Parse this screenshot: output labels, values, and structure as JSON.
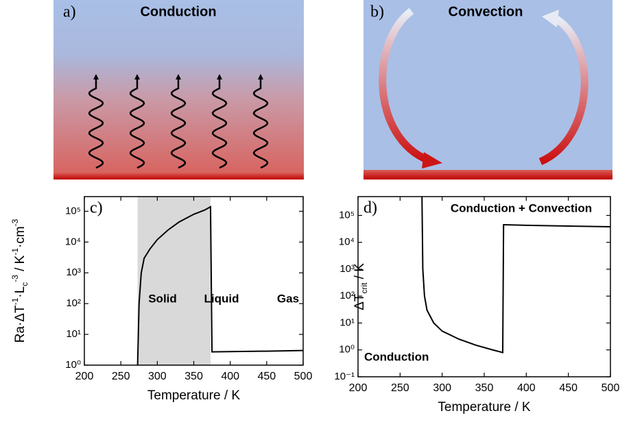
{
  "panels": [
    {
      "label": "a)",
      "title": "Conduction"
    },
    {
      "label": "b)",
      "title": "Convection"
    }
  ],
  "chart_data": [
    {
      "type": "line",
      "panel_label": "c)",
      "log_y": true,
      "x_label": "Temperature / K",
      "y_label": [
        {
          "text": "Ra·ΔT"
        },
        {
          "text": "-1",
          "sup": true
        },
        {
          "text": "·L"
        },
        {
          "text": "c",
          "sub": true
        },
        {
          "text": "-3",
          "sup": true
        },
        {
          "text": " / K"
        },
        {
          "text": "-1",
          "sup": true
        },
        {
          "text": "·cm"
        },
        {
          "text": "-3",
          "sup": true
        }
      ],
      "xlim": [
        200,
        500
      ],
      "xticks": [
        200,
        250,
        300,
        350,
        400,
        450,
        500
      ],
      "ylim": [
        1,
        300000
      ],
      "yticks": [
        {
          "value": 1,
          "label": "10⁰"
        },
        {
          "value": 10,
          "label": "10¹"
        },
        {
          "value": 100,
          "label": "10²"
        },
        {
          "value": 1000,
          "label": "10³"
        },
        {
          "value": 10000,
          "label": "10⁴"
        },
        {
          "value": 100000,
          "label": "10⁵"
        }
      ],
      "shade": {
        "x": [
          273,
          373
        ],
        "color": "#d9d9d9"
      },
      "annotations": [
        "Solid",
        "Liquid",
        "Gas"
      ],
      "x": [
        273,
        275,
        278,
        282,
        290,
        300,
        315,
        330,
        350,
        365,
        373,
        375,
        400,
        450,
        500
      ],
      "series": [
        {
          "color": "#000000",
          "values": [
            1,
            100,
            1000,
            3000,
            6000,
            12000,
            25000,
            45000,
            80000,
            110000,
            140000,
            2.7,
            2.75,
            2.85,
            3.0
          ]
        }
      ]
    },
    {
      "type": "line",
      "panel_label": "d)",
      "log_y": true,
      "x_label": "Temperature / K",
      "y_label": [
        {
          "text": "ΔT"
        },
        {
          "text": "crit",
          "sub": true
        },
        {
          "text": "  / K"
        }
      ],
      "xlim": [
        200,
        500
      ],
      "xticks": [
        200,
        250,
        300,
        350,
        400,
        450,
        500
      ],
      "ylim": [
        0.1,
        500000
      ],
      "yticks": [
        {
          "value": 0.1,
          "label": "10⁻¹"
        },
        {
          "value": 1,
          "label": "10⁰"
        },
        {
          "value": 10,
          "label": "10¹"
        },
        {
          "value": 100,
          "label": "10²"
        },
        {
          "value": 1000,
          "label": "10³"
        },
        {
          "value": 10000,
          "label": "10⁴"
        },
        {
          "value": 100000,
          "label": "10⁵"
        }
      ],
      "annotations": [
        "Conduction + Convection",
        "Conduction"
      ],
      "x": [
        276,
        277,
        279,
        282,
        290,
        300,
        320,
        340,
        360,
        372,
        373,
        400,
        450,
        500
      ],
      "series": [
        {
          "color": "#000000",
          "values": [
            500000,
            1000,
            100,
            30,
            10,
            5,
            2.5,
            1.5,
            1.0,
            0.8,
            45000,
            43000,
            40000,
            38000
          ]
        }
      ]
    }
  ]
}
